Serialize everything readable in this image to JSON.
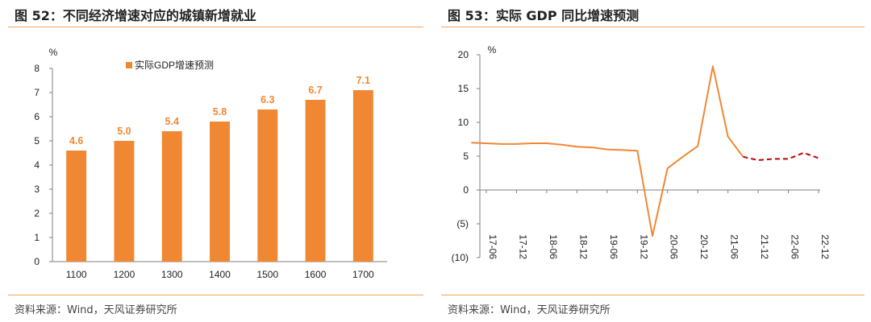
{
  "left_panel": {
    "title": "图 52：不同经济增速对应的城镇新增就业",
    "source": "资料来源：Wind，天风证券研究所"
  },
  "right_panel": {
    "title": "图 53：实际 GDP 同比增速预测",
    "source": "资料来源：Wind，天风证券研究所"
  },
  "colors": {
    "accent": "#f08833",
    "rule": "#f0a35c",
    "forecast": "#c00000"
  },
  "chart_data": [
    {
      "type": "bar",
      "unit": "%",
      "categories": [
        "1100",
        "1200",
        "1300",
        "1400",
        "1500",
        "1600",
        "1700"
      ],
      "series": [
        {
          "name": "实际GDP增速预测",
          "values": [
            4.6,
            5.0,
            5.4,
            5.8,
            6.3,
            6.7,
            7.1
          ]
        }
      ],
      "data_labels": [
        "4.6",
        "5.0",
        "5.4",
        "5.8",
        "6.3",
        "6.7",
        "7.1"
      ],
      "ylim": [
        0,
        8
      ],
      "yticks": [
        "0",
        "1",
        "2",
        "3",
        "4",
        "5",
        "6",
        "7",
        "8"
      ],
      "legend": "top",
      "grid": false
    },
    {
      "type": "line",
      "unit": "%",
      "x_ticks": [
        "17-06",
        "17-12",
        "18-06",
        "18-12",
        "19-06",
        "19-12",
        "20-06",
        "20-12",
        "21-06",
        "21-12",
        "22-06",
        "22-12"
      ],
      "series": [
        {
          "style": "solid",
          "x": [
            "2017-03",
            "2017-06",
            "2017-09",
            "2017-12",
            "2018-03",
            "2018-06",
            "2018-09",
            "2018-12",
            "2019-03",
            "2019-06",
            "2019-09",
            "2019-12",
            "2020-03",
            "2020-06",
            "2020-09",
            "2020-12",
            "2021-03",
            "2021-06",
            "2021-09"
          ],
          "values": [
            7.0,
            6.9,
            6.8,
            6.8,
            6.9,
            6.9,
            6.7,
            6.4,
            6.3,
            6.0,
            5.9,
            5.8,
            -6.8,
            3.2,
            4.9,
            6.5,
            18.3,
            7.9,
            4.9
          ]
        },
        {
          "style": "dashed",
          "x": [
            "2021-09",
            "2021-12",
            "2022-03",
            "2022-06",
            "2022-09",
            "2022-12"
          ],
          "values": [
            4.9,
            4.4,
            4.6,
            4.6,
            5.5,
            4.7
          ]
        }
      ],
      "ylim": [
        -10,
        20
      ],
      "yticks": [
        "(10)",
        "(5)",
        "0",
        "5",
        "10",
        "15",
        "20"
      ],
      "grid": false
    }
  ]
}
